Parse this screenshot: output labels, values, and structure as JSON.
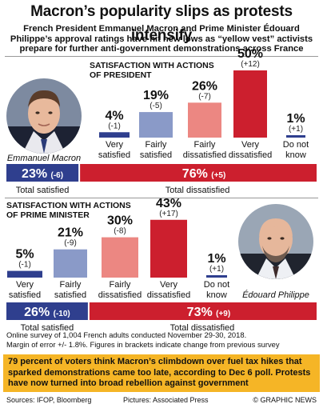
{
  "header": {
    "title": "Macron’s popularity slips as protests intensify",
    "subtitle": "French President Emmanuel Macron and Prime Minister Édouard Philippe’s approval ratings have hit new lows as “yellow vest” activists prepare for further anti-government demonstrations across France"
  },
  "colors": {
    "navy": "#2f3f8e",
    "light_blue": "#8a9ac8",
    "light_red": "#ec8782",
    "red": "#cc1f2e",
    "footer_yellow": "#f5b526"
  },
  "portraits": {
    "president_name": "Emmanuel Macron",
    "pm_name": "Édouard Philippe"
  },
  "chart_data": [
    {
      "type": "bar",
      "title": "SATISFACTION WITH ACTIONS OF PRESIDENT",
      "title_lines": [
        "SATISFACTION WITH ACTIONS",
        "OF PRESIDENT"
      ],
      "categories": [
        [
          "Very",
          "satisfied"
        ],
        [
          "Fairly",
          "satisfied"
        ],
        [
          "Fairly",
          "dissatisfied"
        ],
        [
          "Very",
          "dissatisfied"
        ],
        [
          "Do not",
          "know"
        ]
      ],
      "values": [
        4,
        19,
        26,
        50,
        1
      ],
      "value_labels": [
        "4%",
        "19%",
        "26%",
        "50%",
        "1%"
      ],
      "changes": [
        "(-1)",
        "(-5)",
        "(-7)",
        "(+12)",
        "(+1)"
      ],
      "bar_colors": [
        "#2f3f8e",
        "#8a9ac8",
        "#ec8782",
        "#cc1f2e",
        "#2f3f8e"
      ],
      "totals": {
        "satisfied": {
          "value": 23,
          "label": "23%",
          "change": "(-6)",
          "caption": "Total satisfied"
        },
        "dissatisfied": {
          "value": 76,
          "label": "76%",
          "change": "(+5)",
          "caption": "Total dissatisfied"
        }
      }
    },
    {
      "type": "bar",
      "title": "SATISFACTION WITH ACTIONS OF PRIME MINISTER",
      "title_lines": [
        "SATISFACTION WITH ACTIONS",
        "OF PRIME MINISTER"
      ],
      "categories": [
        [
          "Very",
          "satisfied"
        ],
        [
          "Fairly",
          "satisfied"
        ],
        [
          "Fairly",
          "dissatisfied"
        ],
        [
          "Very",
          "dissatisfied"
        ],
        [
          "Do not",
          "know"
        ]
      ],
      "values": [
        5,
        21,
        30,
        43,
        1
      ],
      "value_labels": [
        "5%",
        "21%",
        "30%",
        "43%",
        "1%"
      ],
      "changes": [
        "(-1)",
        "(-9)",
        "(-8)",
        "(+17)",
        "(+1)"
      ],
      "bar_colors": [
        "#2f3f8e",
        "#8a9ac8",
        "#ec8782",
        "#cc1f2e",
        "#2f3f8e"
      ],
      "totals": {
        "satisfied": {
          "value": 26,
          "label": "26%",
          "change": "(-10)",
          "caption": "Total satisfied"
        },
        "dissatisfied": {
          "value": 73,
          "label": "73%",
          "change": "(+9)",
          "caption": "Total dissatisfied"
        }
      }
    }
  ],
  "notes": {
    "survey_line1": "Online survey of 1,004 French adults conducted November 29-30, 2018.",
    "survey_line2": "Margin of error +/- 1.8%. Figures in brackets indicate change from previous survey"
  },
  "footer": {
    "highlight": "79 percent of voters think Macron’s climbdown over fuel tax hikes that sparked demonstrations came too late, according to Dec 6 poll. Protests have now turned into broad rebellion against government",
    "sources": "Sources: IFOP, Bloomberg",
    "pictures": "Pictures: Associated Press",
    "copyright": "© GRAPHIC NEWS"
  }
}
